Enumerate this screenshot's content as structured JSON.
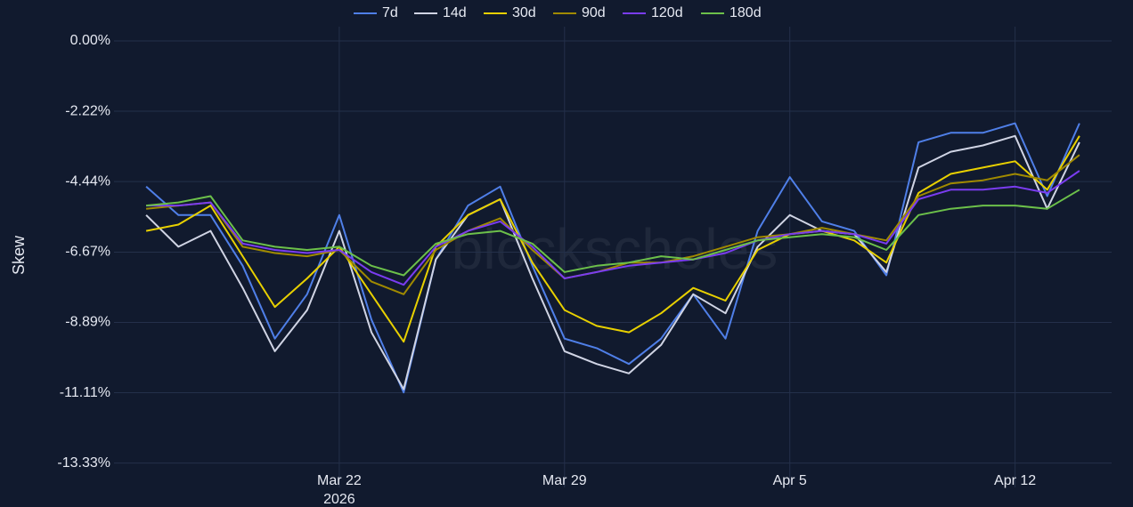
{
  "chart_data": {
    "type": "line",
    "y_label": "Skew",
    "watermark": "blockscholes",
    "x": [
      "2026-03-16",
      "2026-03-17",
      "2026-03-18",
      "2026-03-19",
      "2026-03-20",
      "2026-03-21",
      "2026-03-22",
      "2026-03-23",
      "2026-03-24",
      "2026-03-25",
      "2026-03-26",
      "2026-03-27",
      "2026-03-28",
      "2026-03-29",
      "2026-03-30",
      "2026-03-31",
      "2026-04-01",
      "2026-04-02",
      "2026-04-03",
      "2026-04-04",
      "2026-04-05",
      "2026-04-06",
      "2026-04-07",
      "2026-04-08",
      "2026-04-09",
      "2026-04-10",
      "2026-04-11",
      "2026-04-12",
      "2026-04-13",
      "2026-04-14"
    ],
    "series": [
      {
        "name": "7d",
        "color": "#4f7fe8",
        "values": [
          -4.6,
          -5.5,
          -5.5,
          -7.1,
          -9.4,
          -8.0,
          -5.5,
          -8.8,
          -11.1,
          -6.9,
          -5.2,
          -4.6,
          -7.1,
          -9.4,
          -9.7,
          -10.2,
          -9.4,
          -8.0,
          -9.4,
          -6.0,
          -4.3,
          -5.7,
          -6.0,
          -7.4,
          -3.2,
          -2.9,
          -2.9,
          -2.6,
          -4.9,
          -2.6
        ]
      },
      {
        "name": "14d",
        "color": "#d0d4e4",
        "values": [
          -5.5,
          -6.5,
          -6.0,
          -7.8,
          -9.8,
          -8.5,
          -6.0,
          -9.2,
          -11.0,
          -6.9,
          -5.5,
          -5.0,
          -7.5,
          -9.8,
          -10.2,
          -10.5,
          -9.6,
          -8.0,
          -8.6,
          -6.5,
          -5.5,
          -6.0,
          -6.1,
          -7.3,
          -4.0,
          -3.5,
          -3.3,
          -3.0,
          -5.3,
          -3.2
        ]
      },
      {
        "name": "30d",
        "color": "#e8d000",
        "values": [
          -6.0,
          -5.8,
          -5.2,
          -6.8,
          -8.4,
          -7.5,
          -6.5,
          -8.0,
          -9.5,
          -6.5,
          -5.5,
          -5.0,
          -7.0,
          -8.5,
          -9.0,
          -9.2,
          -8.6,
          -7.8,
          -8.2,
          -6.6,
          -6.1,
          -6.0,
          -6.3,
          -7.0,
          -4.8,
          -4.2,
          -4.0,
          -3.8,
          -4.7,
          -3.0
        ]
      },
      {
        "name": "90d",
        "color": "#a08a00",
        "values": [
          -5.3,
          -5.2,
          -5.1,
          -6.5,
          -6.7,
          -6.8,
          -6.6,
          -7.6,
          -8.0,
          -6.6,
          -6.0,
          -5.6,
          -6.6,
          -7.5,
          -7.3,
          -7.0,
          -7.0,
          -6.8,
          -6.5,
          -6.2,
          -6.1,
          -5.9,
          -6.1,
          -6.3,
          -4.9,
          -4.5,
          -4.4,
          -4.2,
          -4.4,
          -3.6
        ]
      },
      {
        "name": "120d",
        "color": "#7a3cf0",
        "values": [
          -5.2,
          -5.2,
          -5.1,
          -6.4,
          -6.6,
          -6.7,
          -6.6,
          -7.3,
          -7.7,
          -6.5,
          -6.0,
          -5.7,
          -6.5,
          -7.5,
          -7.3,
          -7.1,
          -7.0,
          -6.9,
          -6.7,
          -6.3,
          -6.1,
          -6.0,
          -6.1,
          -6.4,
          -5.0,
          -4.7,
          -4.7,
          -4.6,
          -4.8,
          -4.1
        ]
      },
      {
        "name": "180d",
        "color": "#6cc04a",
        "values": [
          -5.2,
          -5.1,
          -4.9,
          -6.3,
          -6.5,
          -6.6,
          -6.5,
          -7.1,
          -7.4,
          -6.4,
          -6.1,
          -6.0,
          -6.4,
          -7.3,
          -7.1,
          -7.0,
          -6.8,
          -6.9,
          -6.6,
          -6.3,
          -6.2,
          -6.1,
          -6.2,
          -6.6,
          -5.5,
          -5.3,
          -5.2,
          -5.2,
          -5.3,
          -4.7
        ]
      }
    ],
    "xlim": [
      "2026-03-15",
      "2026-04-15"
    ],
    "xticks": [
      {
        "value": "2026-03-22",
        "label": "Mar 22",
        "year": "2026"
      },
      {
        "value": "2026-03-29",
        "label": "Mar 29"
      },
      {
        "value": "2026-04-05",
        "label": "Apr 5"
      },
      {
        "value": "2026-04-12",
        "label": "Apr 12"
      }
    ],
    "ylim": [
      -14.1,
      0.45
    ],
    "yticks": [
      {
        "value": 0,
        "label": "0.00%"
      },
      {
        "value": -2.22,
        "label": "-2.22%"
      },
      {
        "value": -4.44,
        "label": "-4.44%"
      },
      {
        "value": -6.67,
        "label": "-6.67%"
      },
      {
        "value": -8.89,
        "label": "-8.89%"
      },
      {
        "value": -11.11,
        "label": "-11.11%"
      },
      {
        "value": -13.33,
        "label": "-13.33%"
      }
    ],
    "grid": true
  }
}
